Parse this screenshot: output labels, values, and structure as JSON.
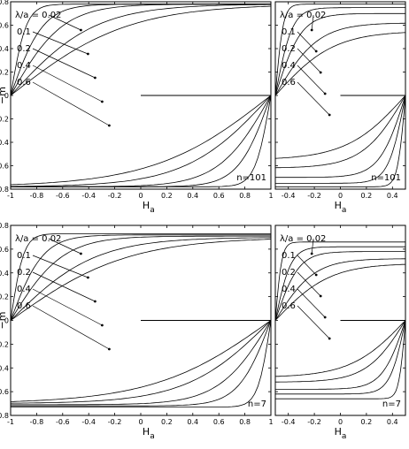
{
  "figure": {
    "panels": [
      {
        "id": "top-left",
        "n_label": "n=101",
        "ylabel": "−m",
        "xlabel_main": "H",
        "xlabel_sub": "a"
      },
      {
        "id": "top-right",
        "n_label": "n=101",
        "ylabel": "",
        "xlabel_main": "H",
        "xlabel_sub": "a"
      },
      {
        "id": "bottom-left",
        "n_label": "n=7",
        "ylabel": "−m",
        "xlabel_main": "H",
        "xlabel_sub": "a"
      },
      {
        "id": "bottom-right",
        "n_label": "n=7",
        "ylabel": "",
        "xlabel_main": "H",
        "xlabel_sub": "a"
      }
    ],
    "legend_labels": [
      "λ/a = 0.02",
      "0.1",
      "0.2",
      "0.4",
      "0.6"
    ]
  },
  "chart_data": [
    {
      "type": "line",
      "panel": "top-left",
      "xlabel": "H_a",
      "ylabel": "−m",
      "xlim": [
        -1,
        1
      ],
      "ylim": [
        -0.8,
        0.8
      ],
      "xticks": [
        "-1",
        "-0.8",
        "-0.6",
        "-0.4",
        "-0.2",
        "0",
        "0.2",
        "0.4",
        "0.6",
        "0.8",
        "1"
      ],
      "yticks": [
        "-0.8",
        "-0.6",
        "-0.4",
        "-0.2",
        "0",
        "0.2",
        "0.4",
        "0.6",
        "0.8"
      ],
      "series": [
        {
          "name": "0.02",
          "hmax": 1,
          "msat": 0.78,
          "w": 0.12
        },
        {
          "name": "0.1",
          "hmax": 1,
          "msat": 0.78,
          "w": 0.25
        },
        {
          "name": "0.2",
          "hmax": 1,
          "msat": 0.78,
          "w": 0.4
        },
        {
          "name": "0.4",
          "hmax": 1,
          "msat": 0.78,
          "w": 0.65
        },
        {
          "name": "0.6",
          "hmax": 1,
          "msat": 0.78,
          "w": 0.9
        }
      ],
      "annotation": "n=101"
    },
    {
      "type": "line",
      "panel": "top-right",
      "xlabel": "H_a",
      "ylabel": "",
      "xlim": [
        -0.5,
        0.5
      ],
      "ylim": [
        -0.8,
        0.8
      ],
      "xticks": [
        "-0.4",
        "-0.2",
        "0",
        "0.2",
        "0.4"
      ],
      "yticks": [],
      "series": [
        {
          "name": "0.02",
          "hmax": 0.5,
          "msat": 0.78,
          "w": 0.06
        },
        {
          "name": "0.1",
          "hmax": 0.5,
          "msat": 0.75,
          "w": 0.13
        },
        {
          "name": "0.2",
          "hmax": 0.5,
          "msat": 0.7,
          "w": 0.2
        },
        {
          "name": "0.4",
          "hmax": 0.5,
          "msat": 0.62,
          "w": 0.33
        },
        {
          "name": "0.6",
          "hmax": 0.5,
          "msat": 0.55,
          "w": 0.45
        }
      ],
      "annotation": "n=101"
    },
    {
      "type": "line",
      "panel": "bottom-left",
      "xlabel": "H_a",
      "ylabel": "−m",
      "xlim": [
        -1,
        1
      ],
      "ylim": [
        -0.8,
        0.8
      ],
      "xticks": [
        "-1",
        "-0.8",
        "-0.6",
        "-0.4",
        "-0.2",
        "0",
        "0.2",
        "0.4",
        "0.6",
        "0.8",
        "1"
      ],
      "yticks": [
        "-0.8",
        "-0.6",
        "-0.4",
        "-0.2",
        "0",
        "0.2",
        "0.4",
        "0.6",
        "0.8"
      ],
      "series": [
        {
          "name": "0.02",
          "hmax": 1,
          "msat": 0.73,
          "w": 0.1
        },
        {
          "name": "0.1",
          "hmax": 1,
          "msat": 0.72,
          "w": 0.25
        },
        {
          "name": "0.2",
          "hmax": 1,
          "msat": 0.71,
          "w": 0.4
        },
        {
          "name": "0.4",
          "hmax": 1,
          "msat": 0.7,
          "w": 0.65
        },
        {
          "name": "0.6",
          "hmax": 1,
          "msat": 0.7,
          "w": 0.9
        }
      ],
      "annotation": "n=7"
    },
    {
      "type": "line",
      "panel": "bottom-right",
      "xlabel": "H_a",
      "ylabel": "",
      "xlim": [
        -0.5,
        0.5
      ],
      "ylim": [
        -0.8,
        0.8
      ],
      "xticks": [
        "-0.4",
        "-0.2",
        "0",
        "0.2",
        "0.4"
      ],
      "yticks": [],
      "series": [
        {
          "name": "0.02",
          "hmax": 0.5,
          "msat": 0.66,
          "w": 0.05
        },
        {
          "name": "0.1",
          "hmax": 0.5,
          "msat": 0.62,
          "w": 0.12
        },
        {
          "name": "0.2",
          "hmax": 0.5,
          "msat": 0.58,
          "w": 0.18
        },
        {
          "name": "0.4",
          "hmax": 0.5,
          "msat": 0.52,
          "w": 0.3
        },
        {
          "name": "0.6",
          "hmax": 0.5,
          "msat": 0.48,
          "w": 0.42
        }
      ],
      "annotation": "n=7"
    }
  ]
}
